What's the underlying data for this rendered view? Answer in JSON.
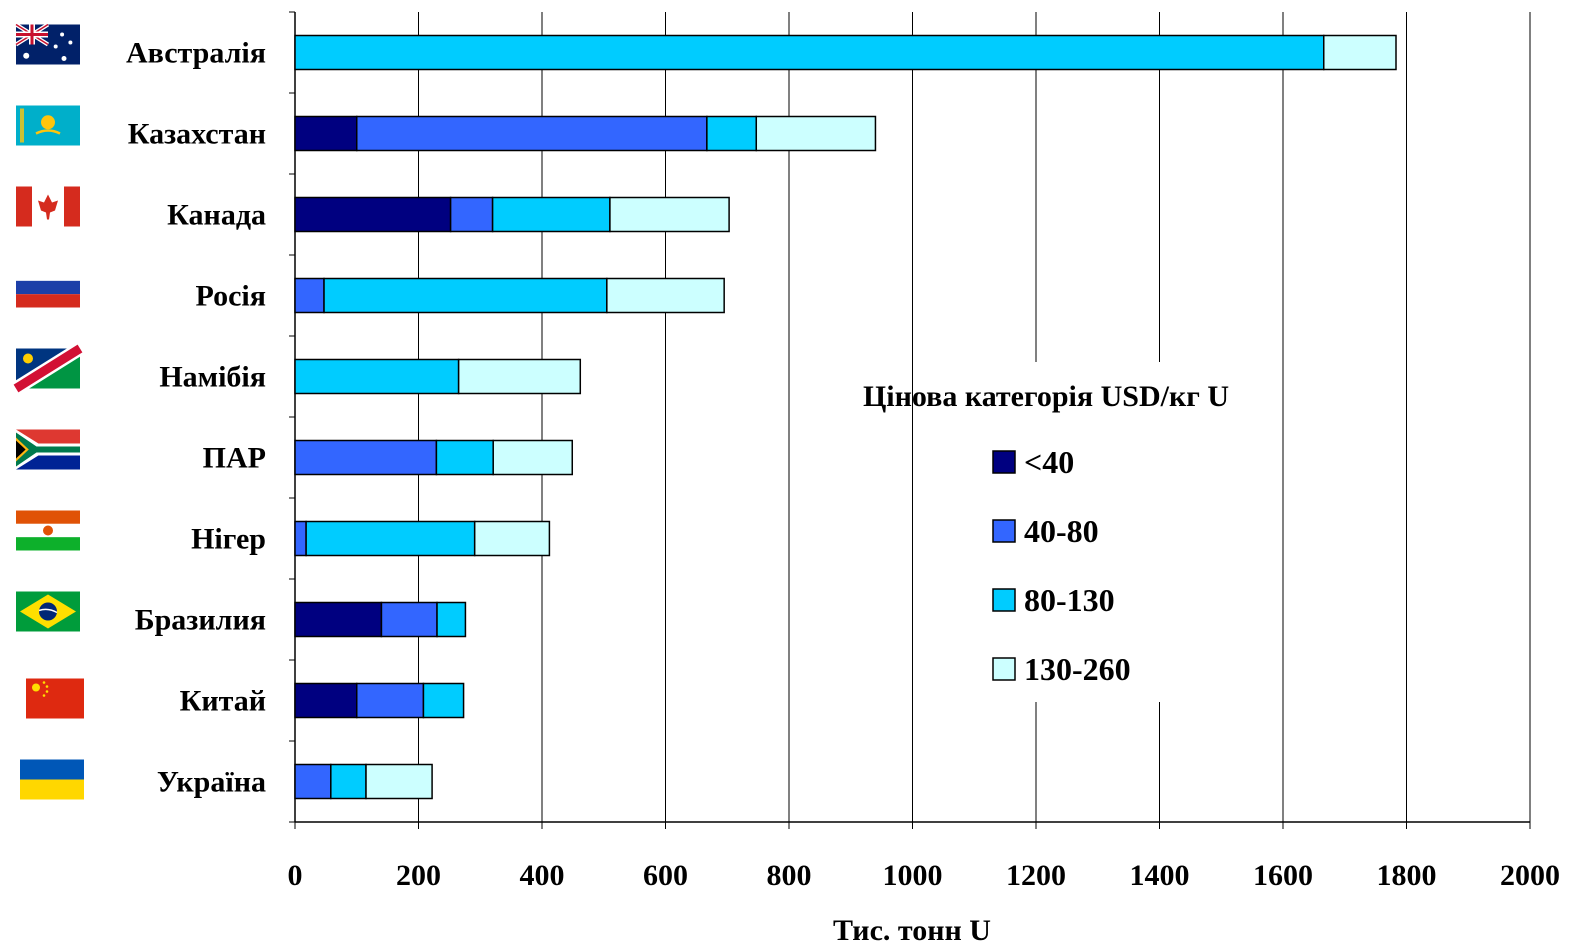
{
  "chart_data": {
    "type": "bar",
    "orientation": "horizontal",
    "stacked": true,
    "categories": [
      "Австралія",
      "Казахстан",
      "Канада",
      "Росія",
      "Намібія",
      "ПАР",
      "Нігер",
      "Бразилия",
      "Китай",
      "Україна"
    ],
    "series": [
      {
        "name": "<40",
        "color": "#000080",
        "values": [
          0,
          100,
          252,
          0,
          0,
          0,
          0,
          140,
          100,
          0
        ]
      },
      {
        "name": "40-80",
        "color": "#3366ff",
        "values": [
          0,
          567,
          68,
          47,
          0,
          229,
          18,
          90,
          108,
          58
        ]
      },
      {
        "name": "80-130",
        "color": "#00ccff",
        "values": [
          1666,
          80,
          190,
          458,
          265,
          92,
          273,
          46,
          65,
          57
        ]
      },
      {
        "name": "130-260",
        "color": "#ccffff",
        "values": [
          117,
          193,
          193,
          190,
          197,
          128,
          121,
          0,
          0,
          107
        ]
      }
    ],
    "xlabel": "Тис. тонн U",
    "ylabel": "",
    "xlim": [
      0,
      2000
    ],
    "xticks": [
      "0",
      "200",
      "400",
      "600",
      "800",
      "1000",
      "1200",
      "1400",
      "1600",
      "1800",
      "2000"
    ],
    "grid": "vertical",
    "legend": {
      "title": "Цінова категорія USD/кг U",
      "position": "right-center"
    },
    "flags": [
      "australia-flag",
      "kazakhstan-flag",
      "canada-flag",
      "russia-flag",
      "namibia-flag",
      "south-africa-flag",
      "niger-flag",
      "brazil-flag",
      "china-flag",
      "ukraine-flag"
    ]
  }
}
